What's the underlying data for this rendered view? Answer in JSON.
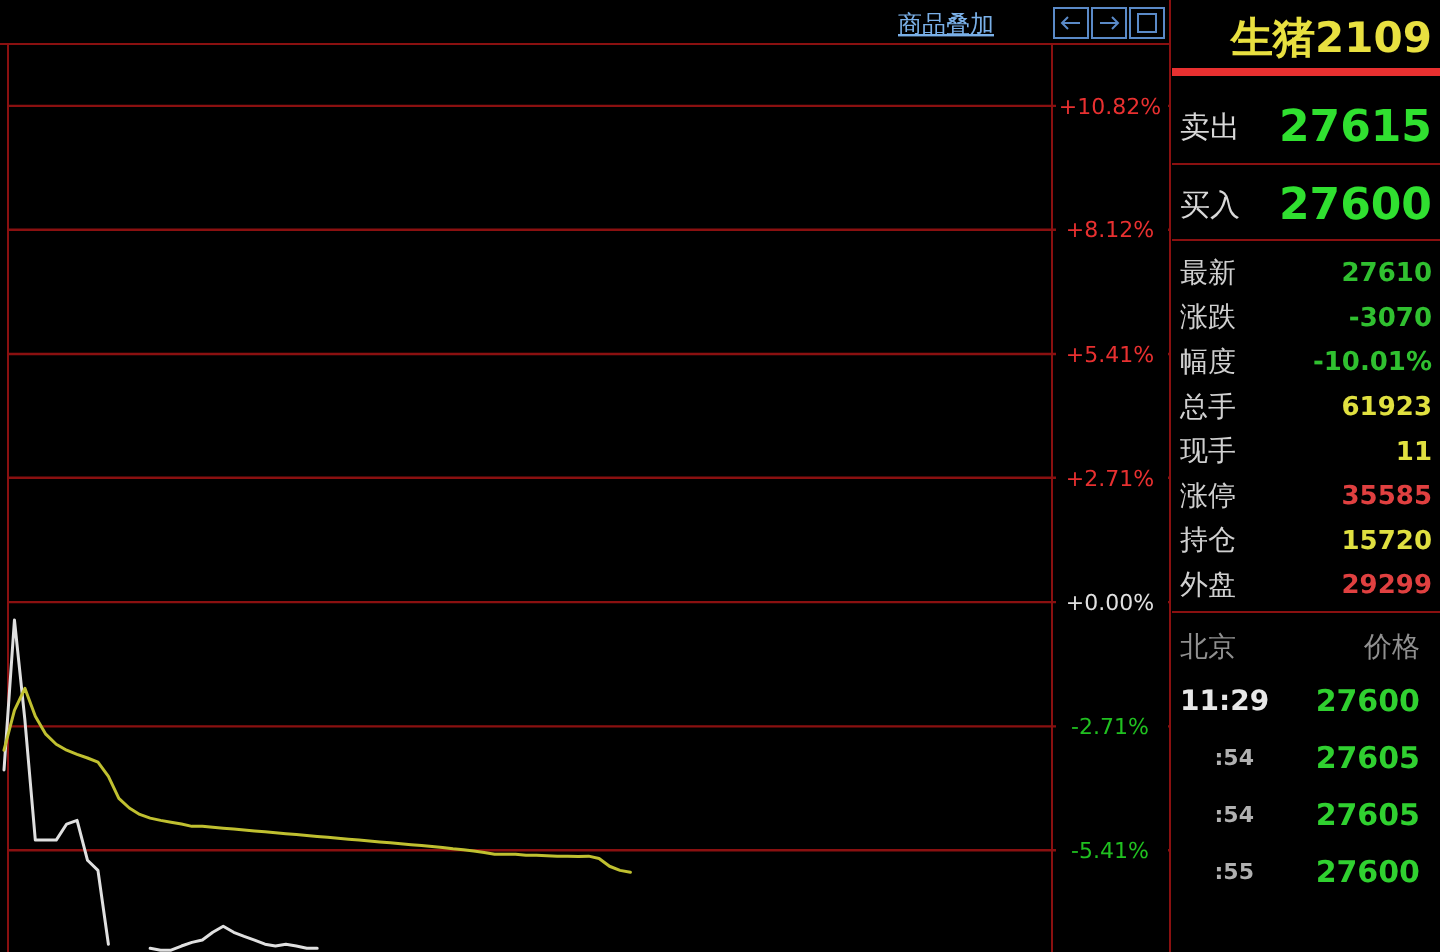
{
  "chart_data": [
    {
      "type": "line",
      "annotations": [
        "商品叠加"
      ],
      "grid": "y",
      "categories": [
        null,
        null,
        null,
        null,
        null,
        null,
        null,
        null,
        null,
        null,
        null,
        null,
        null,
        null,
        null,
        null,
        null,
        null,
        null,
        null,
        null,
        null,
        null,
        null,
        null,
        null,
        null,
        null,
        null,
        null,
        null,
        null,
        null,
        null,
        null,
        null,
        null,
        null,
        null,
        null,
        null,
        null,
        null,
        null,
        null,
        null,
        null,
        null,
        null,
        null,
        null,
        null,
        null,
        null,
        null,
        null,
        null,
        null,
        null,
        null,
        null,
        null,
        null,
        null,
        null,
        null,
        null,
        null,
        null,
        null,
        null,
        null,
        null,
        null,
        null,
        null,
        null,
        null,
        null,
        null,
        null,
        null,
        null,
        null,
        null,
        null,
        null,
        null,
        null,
        null,
        null,
        null,
        null,
        null,
        null,
        null,
        null,
        null,
        null,
        null,
        null
      ],
      "ylim": [
        -7.63,
        12.17
      ],
      "yticks": [
        {
          "value": 10.82,
          "label": "+10.82%"
        },
        {
          "value": 8.12,
          "label": "+8.12%"
        },
        {
          "value": 5.41,
          "label": "+5.41%"
        },
        {
          "value": 2.71,
          "label": "+2.71%"
        },
        {
          "value": 0,
          "label": "+0.00%"
        },
        {
          "value": -2.71,
          "label": "-2.71%"
        },
        {
          "value": -5.41,
          "label": "-5.41%"
        }
      ],
      "series": [
        {
          "color": "#e0e0e0",
          "values": [
            -3.66,
            -0.39,
            -2.57,
            -5.19,
            -5.19,
            -5.19,
            -4.84,
            -4.76,
            -5.63,
            -5.85,
            -7.46,
            null,
            null,
            null,
            -7.55,
            -7.59,
            -7.59,
            -7.5,
            -7.42,
            -7.37,
            -7.2,
            -7.07,
            -7.2,
            -7.29,
            -7.37,
            -7.46,
            -7.5,
            -7.46,
            -7.5,
            -7.55,
            -7.55,
            null,
            null,
            null,
            null,
            null,
            null,
            null,
            null,
            null,
            null,
            null,
            null,
            null,
            null,
            null,
            null,
            null,
            null,
            null,
            null,
            null,
            null,
            null,
            null,
            null,
            null,
            null,
            null,
            null,
            null,
            null,
            null,
            null,
            null,
            null,
            null,
            null,
            null,
            null,
            null,
            null,
            null,
            null,
            null,
            null,
            null,
            null,
            null,
            null,
            null,
            null,
            null,
            null,
            null,
            null,
            null,
            null,
            null,
            null,
            null,
            null,
            null,
            null,
            null,
            null,
            null,
            null,
            null,
            null,
            null
          ]
        },
        {
          "color": "#c0c030",
          "values": [
            -3.23,
            -2.36,
            -1.88,
            -2.49,
            -2.88,
            -3.1,
            -3.23,
            -3.32,
            -3.4,
            -3.49,
            -3.8,
            -4.28,
            -4.49,
            -4.63,
            -4.71,
            -4.76,
            -4.8,
            -4.84,
            -4.89,
            -4.89,
            -4.91,
            -4.93,
            -4.95,
            -4.97,
            -4.99,
            -5.01,
            -5.03,
            -5.05,
            -5.07,
            -5.09,
            -5.11,
            -5.13,
            -5.15,
            -5.17,
            -5.19,
            -5.21,
            -5.23,
            -5.25,
            -5.27,
            -5.29,
            -5.31,
            -5.33,
            -5.35,
            -5.38,
            -5.4,
            -5.43,
            -5.46,
            -5.5,
            -5.5,
            -5.5,
            -5.52,
            -5.52,
            -5.53,
            -5.54,
            -5.54,
            -5.55,
            -5.54,
            -5.59,
            -5.76,
            -5.85,
            -5.89,
            null,
            null,
            null,
            null,
            null,
            null,
            null,
            null,
            null,
            null,
            null,
            null,
            null,
            null,
            null,
            null,
            null,
            null,
            null,
            null,
            null,
            null,
            null,
            null,
            null,
            null,
            null,
            null,
            null,
            null,
            null,
            null,
            null,
            null,
            null,
            null,
            null,
            null,
            null,
            null
          ]
        }
      ]
    },
    {
      "type": "other",
      "title": "生猪2109",
      "annotations": [
        "卖出",
        "27615",
        "买入",
        "27600",
        "最新",
        "27610",
        "涨跌",
        "-3070",
        "幅度",
        "-10.01%",
        "总手",
        "61923",
        "现手",
        "11",
        "涨停",
        "35585",
        "持仓",
        "15720",
        "外盘",
        "29299",
        "北京",
        "价格",
        "11:29",
        "27600",
        ":54",
        "27605",
        ":54",
        "27605",
        ":55",
        "27600"
      ]
    }
  ]
}
